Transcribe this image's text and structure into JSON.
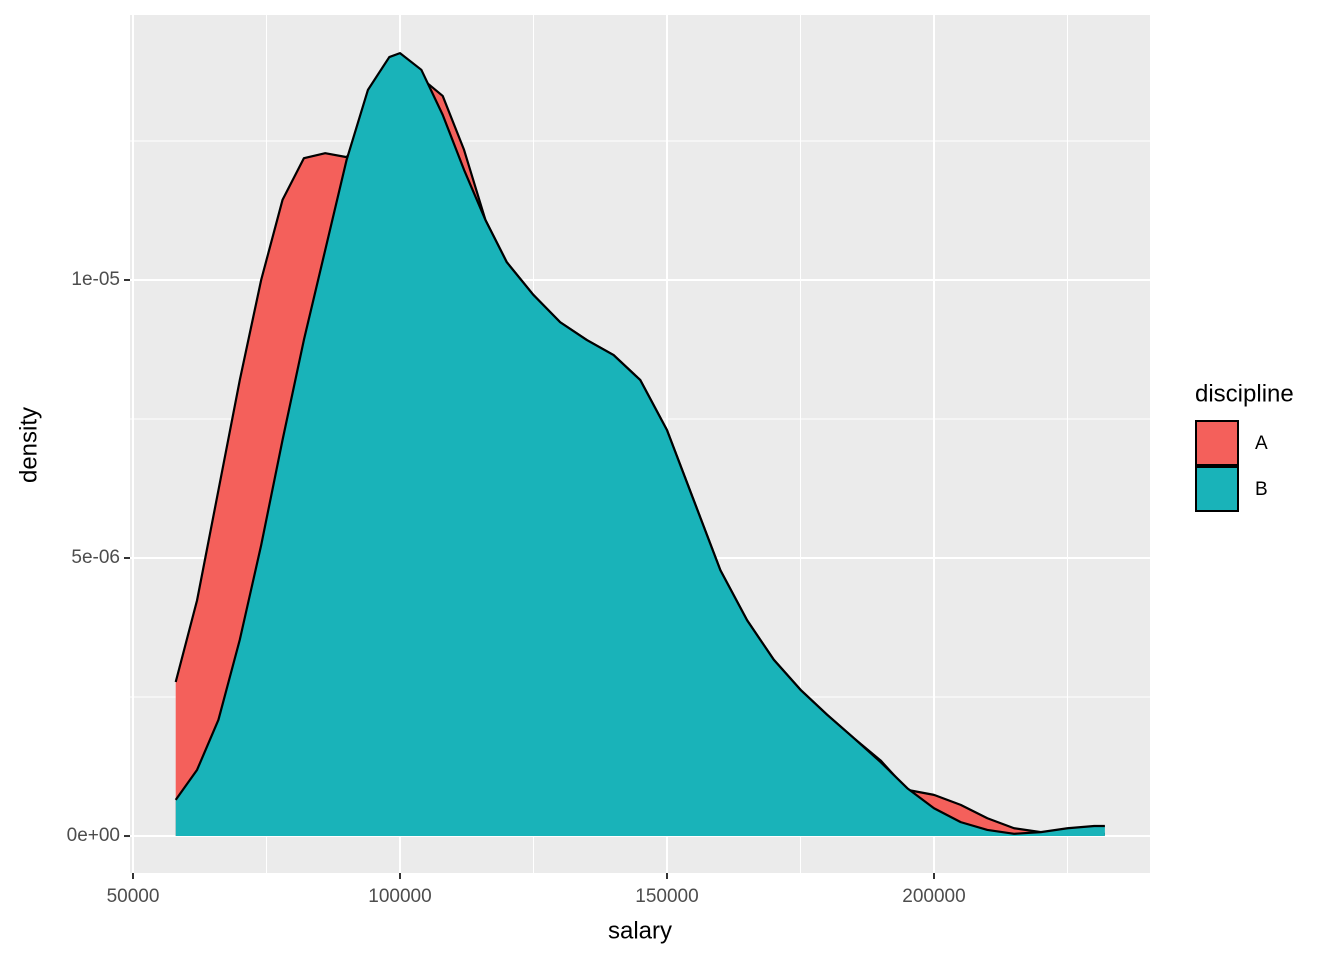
{
  "chart_data": {
    "type": "density",
    "x_label": "salary",
    "y_label": "density",
    "legend_title": "discipline",
    "legend_position": "right",
    "grid": true,
    "x": [
      58000,
      62000,
      66000,
      70000,
      74000,
      78000,
      82000,
      86000,
      90000,
      94000,
      98000,
      100000,
      104000,
      108000,
      112000,
      116000,
      120000,
      125000,
      130000,
      135000,
      140000,
      145000,
      150000,
      155000,
      160000,
      165000,
      170000,
      175000,
      180000,
      185000,
      190000,
      195000,
      200000,
      205000,
      210000,
      215000,
      220000,
      225000,
      230000,
      232000
    ],
    "series": [
      {
        "name": "A",
        "color": "#F4605B",
        "values": [
          2.77e-06,
          4.24e-06,
          6.22e-06,
          8.2e-06,
          1e-05,
          1.144e-05,
          1.219e-05,
          1.228e-05,
          1.221e-05,
          1.27e-05,
          1.324e-05,
          1.342e-05,
          1.363e-05,
          1.331e-05,
          1.234e-05,
          1.108e-05,
          1.032e-05,
          9.73e-06,
          9.24e-06,
          8.92e-06,
          8.65e-06,
          8.2e-06,
          7.3e-06,
          6.04e-06,
          4.78e-06,
          3.88e-06,
          3.17e-06,
          2.63e-06,
          2.18e-06,
          1.76e-06,
          1.36e-06,
          8.3e-07,
          7.4e-07,
          5.6e-07,
          3.2e-07,
          1.4e-07,
          7e-08,
          5e-08,
          5e-08,
          4e-08
        ]
      },
      {
        "name": "B",
        "color": "#19B3B9",
        "values": [
          6.5e-07,
          1.19e-06,
          2.09e-06,
          3.53e-06,
          5.23e-06,
          7.12e-06,
          8.92e-06,
          1.054e-05,
          1.216e-05,
          1.342e-05,
          1.401e-05,
          1.408e-05,
          1.378e-05,
          1.297e-05,
          1.198e-05,
          1.108e-05,
          1.032e-05,
          9.73e-06,
          9.24e-06,
          8.92e-06,
          8.65e-06,
          8.2e-06,
          7.3e-06,
          6.04e-06,
          4.78e-06,
          3.88e-06,
          3.17e-06,
          2.63e-06,
          2.18e-06,
          1.76e-06,
          1.33e-06,
          8.6e-07,
          5e-07,
          2.5e-07,
          1.1e-07,
          4e-08,
          7e-08,
          1.4e-07,
          1.8e-07,
          1.8e-07
        ]
      }
    ],
    "xlim": [
      49440,
      240450
    ],
    "ylim": [
      -6.65e-07,
      1.4766e-05
    ],
    "xticks": [
      50000,
      100000,
      150000,
      200000
    ],
    "yticks": [
      {
        "value": 0,
        "label": "0e+00"
      },
      {
        "value": 5e-06,
        "label": "5e-06"
      },
      {
        "value": 1e-05,
        "label": "1e-05"
      }
    ]
  }
}
